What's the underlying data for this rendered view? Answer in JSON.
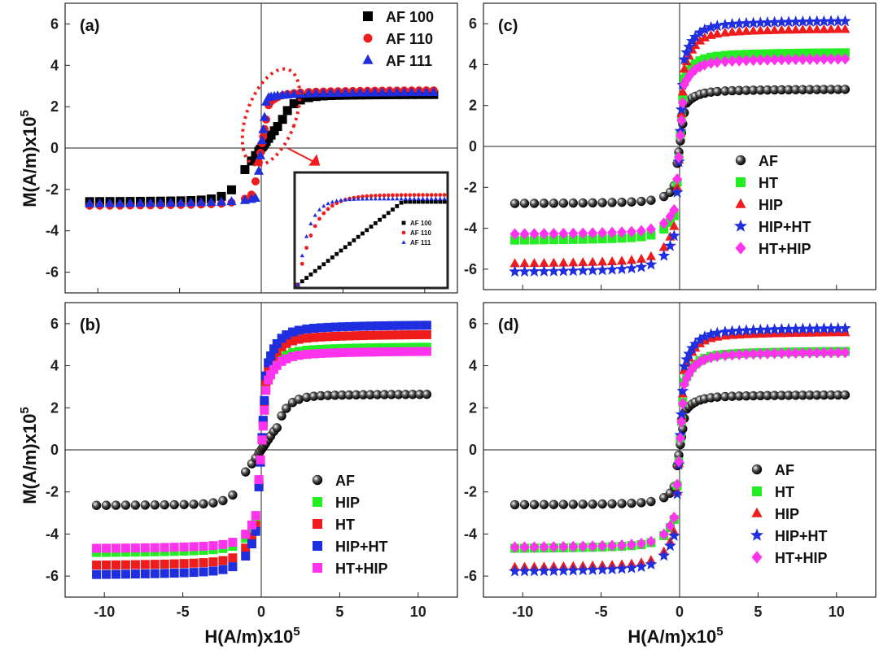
{
  "figure": {
    "ylabel_main": "M(A/m)x10",
    "xlabel_main": "H(A/m)x10",
    "exponent": "5"
  },
  "colors": {
    "AF": "#000000",
    "AF_round": "#222222",
    "red": "#ee1c1c",
    "blue": "#1f2fe0",
    "green": "#22ee22",
    "magenta": "#ff33ee"
  },
  "chart_data": [
    {
      "panel_label": "(a)",
      "type": "scatter",
      "xlim": [
        -12,
        12
      ],
      "ylim": [
        -7,
        7
      ],
      "xticks": [],
      "yticks": [
        -6,
        -4,
        -2,
        0,
        2,
        4,
        6
      ],
      "grid": false,
      "zero_lines": true,
      "legend_position": "top-right",
      "series": [
        {
          "name": "AF 100",
          "marker": "square",
          "color": "black",
          "Ms": 2.6,
          "Hk": 1.2,
          "low": 1.25
        },
        {
          "name": "AF 110",
          "marker": "circle",
          "color": "red",
          "Ms": 2.8,
          "Hk": 0.5,
          "low": 2.3
        },
        {
          "name": "AF 111",
          "marker": "triangle",
          "color": "blue",
          "Ms": 2.7,
          "Hk": 0.35,
          "low": 2.6
        }
      ],
      "inset": {
        "legend_position": "bottom-right",
        "series_names": [
          "AF 100",
          "AF 110",
          "AF 111"
        ]
      }
    },
    {
      "panel_label": "(b)",
      "type": "scatter",
      "xlim": [
        -12.5,
        12.5
      ],
      "ylim": [
        -7,
        7
      ],
      "xticks": [
        -10,
        -5,
        0,
        5,
        10
      ],
      "yticks": [
        -6,
        -4,
        -2,
        0,
        2,
        4,
        6
      ],
      "grid": false,
      "zero_lines": true,
      "legend_position": "bottom-right",
      "series": [
        {
          "name": "AF",
          "marker": "sphere",
          "color": "black",
          "Ms": 2.65,
          "Hk": 1.0,
          "low": 1.1
        },
        {
          "name": "HIP",
          "marker": "square",
          "color": "green",
          "Ms": 4.9,
          "Hk": 0.35,
          "low": 3.5
        },
        {
          "name": "HT",
          "marker": "square",
          "color": "red",
          "Ms": 5.5,
          "Hk": 0.35,
          "low": 3.8
        },
        {
          "name": "HIP+HT",
          "marker": "square",
          "color": "blue",
          "Ms": 5.95,
          "Hk": 0.35,
          "low": 4.1
        },
        {
          "name": "HT+HIP",
          "marker": "square",
          "color": "magenta",
          "Ms": 4.7,
          "Hk": 0.35,
          "low": 3.3
        }
      ]
    },
    {
      "panel_label": "(c)",
      "type": "scatter",
      "xlim": [
        -12.5,
        12.5
      ],
      "ylim": [
        -7,
        7
      ],
      "xticks": [],
      "yticks": [
        -6,
        -4,
        -2,
        0,
        2,
        4,
        6
      ],
      "grid": false,
      "zero_lines": true,
      "legend_position": "bottom-right",
      "series": [
        {
          "name": "AF",
          "marker": "sphere",
          "color": "black",
          "Ms": 2.8,
          "Hk": 0.4,
          "low": 2.2
        },
        {
          "name": "HT",
          "marker": "square",
          "color": "green",
          "Ms": 4.6,
          "Hk": 0.3,
          "low": 3.5
        },
        {
          "name": "HIP",
          "marker": "triangle",
          "color": "red",
          "Ms": 5.75,
          "Hk": 0.3,
          "low": 4.0
        },
        {
          "name": "HIP+HT",
          "marker": "star",
          "color": "blue",
          "Ms": 6.15,
          "Hk": 0.3,
          "low": 4.5
        },
        {
          "name": "HT+HIP",
          "marker": "diamond",
          "color": "magenta",
          "Ms": 4.3,
          "Hk": 0.3,
          "low": 3.2
        }
      ]
    },
    {
      "panel_label": "(d)",
      "type": "scatter",
      "xlim": [
        -12.5,
        12.5
      ],
      "ylim": [
        -7,
        7
      ],
      "xticks": [
        -10,
        -5,
        0,
        5,
        10
      ],
      "yticks": [
        -6,
        -4,
        -2,
        0,
        2,
        4,
        6
      ],
      "grid": false,
      "zero_lines": true,
      "legend_position": "bottom-right",
      "series": [
        {
          "name": "AF",
          "marker": "sphere",
          "color": "black",
          "Ms": 2.62,
          "Hk": 0.4,
          "low": 2.0
        },
        {
          "name": "HT",
          "marker": "square",
          "color": "green",
          "Ms": 4.7,
          "Hk": 0.3,
          "low": 3.4
        },
        {
          "name": "HIP",
          "marker": "triangle",
          "color": "red",
          "Ms": 5.6,
          "Hk": 0.3,
          "low": 4.0
        },
        {
          "name": "HIP+HT",
          "marker": "star",
          "color": "blue",
          "Ms": 5.8,
          "Hk": 0.3,
          "low": 4.2
        },
        {
          "name": "HT+HIP",
          "marker": "diamond",
          "color": "magenta",
          "Ms": 4.65,
          "Hk": 0.3,
          "low": 3.3
        }
      ]
    }
  ]
}
